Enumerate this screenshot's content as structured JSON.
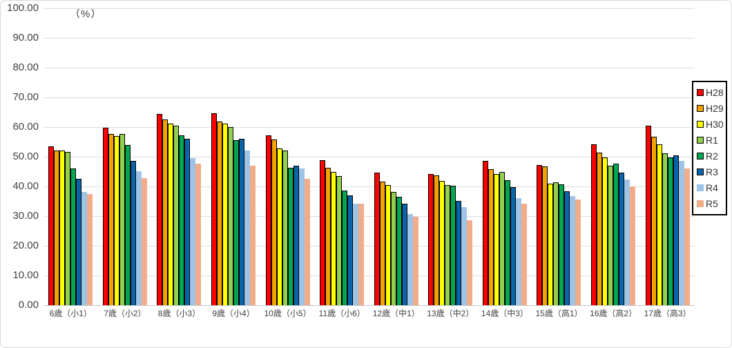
{
  "figure": {
    "unit_label": "（%）",
    "background": "#ffffff",
    "frame_border_color": "#d9d9d9",
    "gridline_color": "#dcdcdc",
    "baseline_color": "#c6c6c6",
    "text_color": "#404040"
  },
  "chart_data": {
    "type": "bar",
    "title": "",
    "ylabel": "（%）",
    "xlabel": "",
    "ylim": [
      0,
      100
    ],
    "ytick_step": 10,
    "yticks": [
      "100.00",
      "90.00",
      "80.00",
      "70.00",
      "60.00",
      "50.00",
      "40.00",
      "30.00",
      "20.00",
      "10.00",
      "0.00"
    ],
    "grid": true,
    "legend_position": "right",
    "categories": [
      "6歳（小1）",
      "7歳（小2）",
      "8歳（小3）",
      "9歳（小4）",
      "10歳（小5）",
      "11歳（小6）",
      "12歳（中1）",
      "13歳（中2）",
      "14歳（中3）",
      "15歳（高1）",
      "16歳（高2）",
      "17歳（高3）"
    ],
    "series": [
      {
        "name": "H28",
        "color": "#fe0000",
        "outlined": true,
        "values": [
          53.6,
          59.7,
          64.5,
          64.6,
          57.1,
          48.8,
          44.7,
          44.3,
          48.5,
          47.1,
          54.3,
          60.5
        ]
      },
      {
        "name": "H29",
        "color": "#f3a200",
        "outlined": true,
        "values": [
          52.2,
          57.6,
          62.5,
          61.9,
          55.9,
          46.2,
          41.7,
          43.8,
          45.9,
          46.7,
          51.4,
          56.7
        ]
      },
      {
        "name": "H30",
        "color": "#ffff00",
        "outlined": true,
        "values": [
          52.0,
          57.0,
          61.2,
          61.1,
          52.9,
          44.8,
          40.4,
          41.9,
          44.2,
          40.9,
          49.7,
          54.3
        ]
      },
      {
        "name": "R1",
        "color": "#92d050",
        "outlined": true,
        "values": [
          51.6,
          57.7,
          60.4,
          60.1,
          52.0,
          43.4,
          38.2,
          40.4,
          44.8,
          41.5,
          47.0,
          51.1
        ]
      },
      {
        "name": "R2",
        "color": "#00a651",
        "outlined": true,
        "values": [
          46.0,
          54.0,
          57.1,
          55.5,
          46.3,
          38.6,
          36.4,
          40.2,
          42.1,
          40.8,
          47.7,
          49.7
        ]
      },
      {
        "name": "R3",
        "color": "#0a64aa",
        "outlined": true,
        "values": [
          42.6,
          48.7,
          56.0,
          56.0,
          46.9,
          36.9,
          34.3,
          35.1,
          39.8,
          38.4,
          44.7,
          50.4
        ]
      },
      {
        "name": "R4",
        "color": "#9dc3e6",
        "outlined": false,
        "values": [
          38.1,
          45.2,
          49.6,
          52.2,
          46.0,
          34.3,
          30.7,
          33.0,
          36.1,
          36.7,
          42.3,
          48.7
        ]
      },
      {
        "name": "R5",
        "color": "#f3ac89",
        "outlined": false,
        "values": [
          37.4,
          42.7,
          47.6,
          47.0,
          42.6,
          34.2,
          29.7,
          28.5,
          34.2,
          35.7,
          39.9,
          46.0
        ]
      }
    ]
  }
}
